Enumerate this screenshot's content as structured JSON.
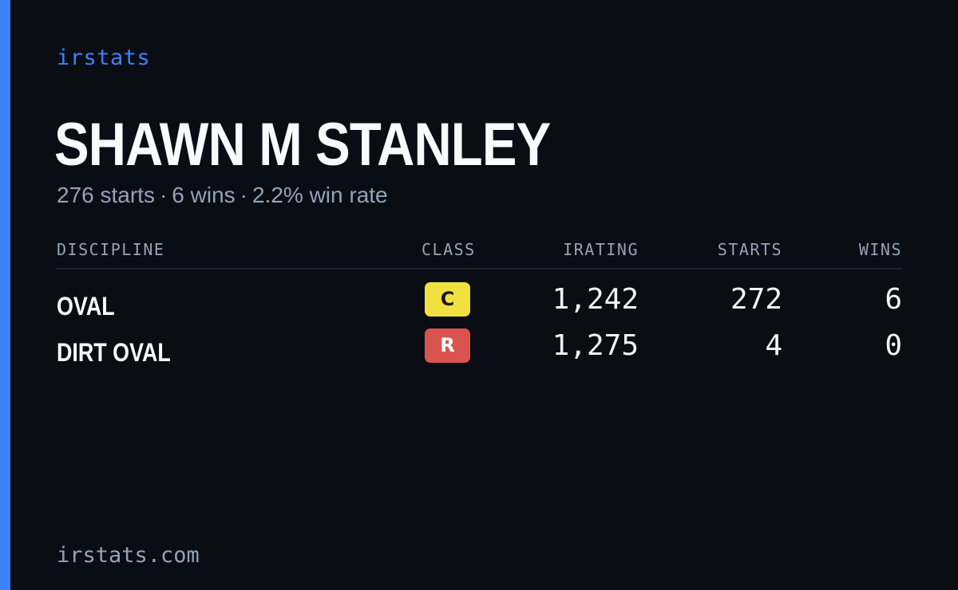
{
  "brand": "irstats",
  "accent_color": "#3b82f6",
  "driver": {
    "name": "SHAWN M STANLEY",
    "starts_text": "276 starts",
    "wins_text": "6 wins",
    "win_rate_text": "2.2% win rate",
    "separator": "·"
  },
  "table": {
    "headers": {
      "discipline": "DISCIPLINE",
      "class": "CLASS",
      "irating": "IRATING",
      "starts": "STARTS",
      "wins": "WINS"
    },
    "rows": [
      {
        "discipline": "OVAL",
        "class": "C",
        "class_bg": "#f0e040",
        "class_fg": "#1a1a1a",
        "irating": "1,242",
        "starts": "272",
        "wins": "6"
      },
      {
        "discipline": "DIRT OVAL",
        "class": "R",
        "class_bg": "#d9534f",
        "class_fg": "#ffffff",
        "irating": "1,275",
        "starts": "4",
        "wins": "0"
      }
    ]
  },
  "footer": "irstats.com"
}
